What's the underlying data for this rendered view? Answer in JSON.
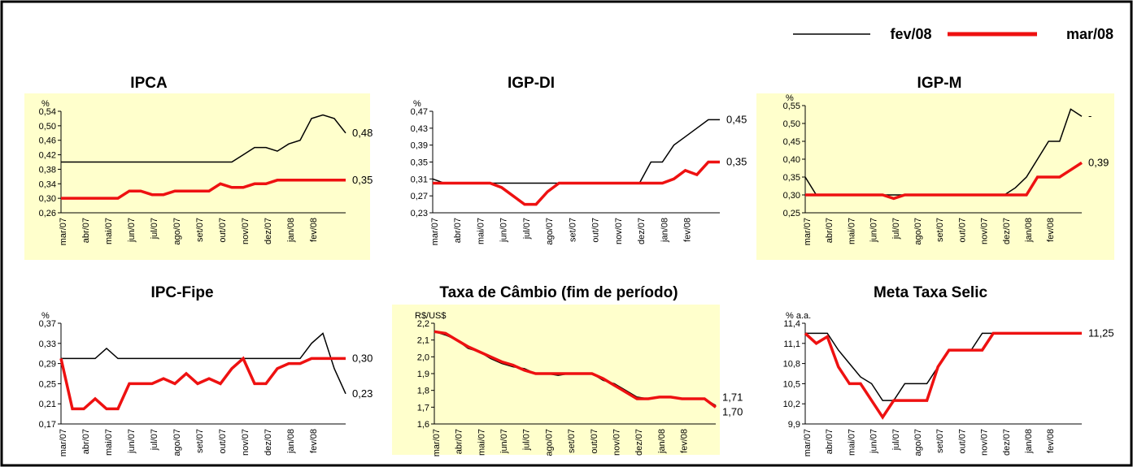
{
  "legend": [
    {
      "name": "fev/08",
      "color": "#000000"
    },
    {
      "name": "mar/08",
      "color": "#ee1111"
    }
  ],
  "chart_data": [
    {
      "type": "line",
      "title": "IPCA",
      "unit": "%",
      "background": "#ffffcc",
      "categories": [
        "mar/07",
        null,
        "abr/07",
        null,
        "mai/07",
        null,
        "jun/07",
        null,
        "jul/07",
        null,
        "ago/07",
        null,
        "set/07",
        null,
        "out/07",
        null,
        "nov/07",
        null,
        "dez/07",
        null,
        "jan/08",
        null,
        "fev/08",
        null,
        null,
        null
      ],
      "ylim": [
        0.26,
        0.54
      ],
      "yticks": [
        {
          "value": 0.26,
          "label": "0,26"
        },
        {
          "value": 0.3,
          "label": "0,30"
        },
        {
          "value": 0.34,
          "label": "0,34"
        },
        {
          "value": 0.38,
          "label": "0,38"
        },
        {
          "value": 0.42,
          "label": "0,42"
        },
        {
          "value": 0.46,
          "label": "0,46"
        },
        {
          "value": 0.5,
          "label": "0,50"
        },
        {
          "value": 0.54,
          "label": "0,54"
        }
      ],
      "series": [
        {
          "color": "#000000",
          "values": [
            0.4,
            0.4,
            0.4,
            0.4,
            0.4,
            0.4,
            0.4,
            0.4,
            0.4,
            0.4,
            0.4,
            0.4,
            0.4,
            0.4,
            0.4,
            0.4,
            0.42,
            0.44,
            0.44,
            0.43,
            0.45,
            0.46,
            0.52,
            0.53,
            0.52,
            0.48
          ],
          "value_labels": [
            null,
            null,
            null,
            null,
            null,
            null,
            null,
            null,
            null,
            null,
            null,
            null,
            null,
            null,
            null,
            null,
            null,
            null,
            null,
            null,
            null,
            null,
            null,
            null,
            null,
            "0,48"
          ]
        },
        {
          "color": "#ee1111",
          "values": [
            0.3,
            0.3,
            0.3,
            0.3,
            0.3,
            0.3,
            0.32,
            0.32,
            0.31,
            0.31,
            0.32,
            0.32,
            0.32,
            0.32,
            0.34,
            0.33,
            0.33,
            0.34,
            0.34,
            0.35,
            0.35,
            0.35,
            0.35,
            0.35,
            0.35,
            0.35
          ],
          "value_labels": [
            null,
            null,
            null,
            null,
            null,
            null,
            null,
            null,
            null,
            null,
            null,
            null,
            null,
            null,
            null,
            null,
            null,
            null,
            null,
            null,
            null,
            null,
            null,
            null,
            null,
            "0,35"
          ]
        }
      ]
    },
    {
      "type": "line",
      "title": "IGP-DI",
      "unit": "%",
      "background": null,
      "categories": [
        "mar/07",
        null,
        "abr/07",
        null,
        "mai/07",
        null,
        "jun/07",
        null,
        "jul/07",
        null,
        "ago/07",
        null,
        "set/07",
        null,
        "out/07",
        null,
        "nov/07",
        null,
        "dez/07",
        null,
        "jan/08",
        null,
        "fev/08",
        null,
        null,
        null
      ],
      "ylim": [
        0.23,
        0.47
      ],
      "yticks": [
        {
          "value": 0.23,
          "label": "0,23"
        },
        {
          "value": 0.27,
          "label": "0,27"
        },
        {
          "value": 0.31,
          "label": "0,31"
        },
        {
          "value": 0.35,
          "label": "0,35"
        },
        {
          "value": 0.39,
          "label": "0,39"
        },
        {
          "value": 0.43,
          "label": "0,43"
        },
        {
          "value": 0.47,
          "label": "0,47"
        }
      ],
      "series": [
        {
          "color": "#000000",
          "values": [
            0.31,
            0.3,
            0.3,
            0.3,
            0.3,
            0.3,
            0.3,
            0.3,
            0.3,
            0.3,
            0.3,
            0.3,
            0.3,
            0.3,
            0.3,
            0.3,
            0.3,
            0.3,
            0.3,
            0.35,
            0.35,
            0.39,
            0.41,
            0.43,
            0.45,
            0.45
          ],
          "value_labels": [
            null,
            null,
            null,
            null,
            null,
            null,
            null,
            null,
            null,
            null,
            null,
            null,
            null,
            null,
            null,
            null,
            null,
            null,
            null,
            null,
            null,
            null,
            null,
            null,
            null,
            "0,45"
          ]
        },
        {
          "color": "#ee1111",
          "values": [
            0.3,
            0.3,
            0.3,
            0.3,
            0.3,
            0.3,
            0.29,
            0.27,
            0.25,
            0.25,
            0.28,
            0.3,
            0.3,
            0.3,
            0.3,
            0.3,
            0.3,
            0.3,
            0.3,
            0.3,
            0.3,
            0.31,
            0.33,
            0.32,
            0.35,
            0.35
          ],
          "value_labels": [
            null,
            null,
            null,
            null,
            null,
            null,
            null,
            null,
            null,
            null,
            null,
            null,
            null,
            null,
            null,
            null,
            null,
            null,
            null,
            null,
            null,
            null,
            null,
            null,
            null,
            "0,35"
          ]
        }
      ]
    },
    {
      "type": "line",
      "title": "IGP-M",
      "unit": "%",
      "background": "#ffffcc",
      "categories": [
        "mar/07",
        null,
        "abr/07",
        null,
        "mai/07",
        null,
        "jun/07",
        null,
        "jul/07",
        null,
        "ago/07",
        null,
        "set/07",
        null,
        "out/07",
        null,
        "nov/07",
        null,
        "dez/07",
        null,
        "jan/08",
        null,
        "fev/08",
        null,
        null,
        null
      ],
      "ylim": [
        0.25,
        0.55
      ],
      "yticks": [
        {
          "value": 0.25,
          "label": "0,25"
        },
        {
          "value": 0.3,
          "label": "0,30"
        },
        {
          "value": 0.35,
          "label": "0,35"
        },
        {
          "value": 0.4,
          "label": "0,40"
        },
        {
          "value": 0.45,
          "label": "0,45"
        },
        {
          "value": 0.5,
          "label": "0,50"
        },
        {
          "value": 0.55,
          "label": "0,55"
        }
      ],
      "series": [
        {
          "color": "#000000",
          "values": [
            0.35,
            0.3,
            0.3,
            0.3,
            0.3,
            0.3,
            0.3,
            0.3,
            0.3,
            0.3,
            0.3,
            0.3,
            0.3,
            0.3,
            0.3,
            0.3,
            0.3,
            0.3,
            0.3,
            0.32,
            0.35,
            0.4,
            0.45,
            0.45,
            0.54,
            0.52
          ],
          "value_labels": [
            null,
            null,
            null,
            null,
            null,
            null,
            null,
            null,
            null,
            null,
            null,
            null,
            null,
            null,
            null,
            null,
            null,
            null,
            null,
            null,
            null,
            null,
            null,
            null,
            null,
            "-"
          ]
        },
        {
          "color": "#ee1111",
          "values": [
            0.3,
            0.3,
            0.3,
            0.3,
            0.3,
            0.3,
            0.3,
            0.3,
            0.29,
            0.3,
            0.3,
            0.3,
            0.3,
            0.3,
            0.3,
            0.3,
            0.3,
            0.3,
            0.3,
            0.3,
            0.3,
            0.35,
            0.35,
            0.35,
            0.37,
            0.39
          ],
          "value_labels": [
            null,
            null,
            null,
            null,
            null,
            null,
            null,
            null,
            null,
            null,
            null,
            null,
            null,
            null,
            null,
            null,
            null,
            null,
            null,
            null,
            null,
            null,
            null,
            null,
            null,
            "0,39"
          ]
        }
      ]
    },
    {
      "type": "line",
      "title": "IPC-Fipe",
      "unit": "%",
      "background": null,
      "categories": [
        "mar/07",
        null,
        "abr/07",
        null,
        "mai/07",
        null,
        "jun/07",
        null,
        "jul/07",
        null,
        "ago/07",
        null,
        "set/07",
        null,
        "out/07",
        null,
        "nov/07",
        null,
        "dez/07",
        null,
        "jan/08",
        null,
        "fev/08",
        null,
        null,
        null
      ],
      "ylim": [
        0.17,
        0.37
      ],
      "yticks": [
        {
          "value": 0.17,
          "label": "0,17"
        },
        {
          "value": 0.21,
          "label": "0,21"
        },
        {
          "value": 0.25,
          "label": "0,25"
        },
        {
          "value": 0.29,
          "label": "0,29"
        },
        {
          "value": 0.33,
          "label": "0,33"
        },
        {
          "value": 0.37,
          "label": "0,37"
        }
      ],
      "series": [
        {
          "color": "#000000",
          "values": [
            0.3,
            0.3,
            0.3,
            0.3,
            0.32,
            0.3,
            0.3,
            0.3,
            0.3,
            0.3,
            0.3,
            0.3,
            0.3,
            0.3,
            0.3,
            0.3,
            0.3,
            0.3,
            0.3,
            0.3,
            0.3,
            0.3,
            0.33,
            0.35,
            0.28,
            0.23
          ],
          "value_labels": [
            null,
            null,
            null,
            null,
            null,
            null,
            null,
            null,
            null,
            null,
            null,
            null,
            null,
            null,
            null,
            null,
            null,
            null,
            null,
            null,
            null,
            null,
            null,
            null,
            null,
            "0,23"
          ]
        },
        {
          "color": "#ee1111",
          "values": [
            0.3,
            0.2,
            0.2,
            0.22,
            0.2,
            0.2,
            0.25,
            0.25,
            0.25,
            0.26,
            0.25,
            0.27,
            0.25,
            0.26,
            0.25,
            0.28,
            0.3,
            0.25,
            0.25,
            0.28,
            0.29,
            0.29,
            0.3,
            0.3,
            0.3,
            0.3
          ],
          "value_labels": [
            null,
            null,
            null,
            null,
            null,
            null,
            null,
            null,
            null,
            null,
            null,
            null,
            null,
            null,
            null,
            null,
            null,
            null,
            null,
            null,
            null,
            null,
            null,
            null,
            null,
            "0,30"
          ]
        }
      ]
    },
    {
      "type": "line",
      "title": "Taxa de Câmbio (fim de período)",
      "unit": "R$/US$",
      "background": "#ffffcc",
      "categories": [
        "mar/07",
        null,
        "abr/07",
        null,
        "mai/07",
        null,
        "jun/07",
        null,
        "jul/07",
        null,
        "ago/07",
        null,
        "set/07",
        null,
        "out/07",
        null,
        "nov/07",
        null,
        "dez/07",
        null,
        "jan/08",
        null,
        "fev/08",
        null,
        null,
        null
      ],
      "ylim": [
        1.6,
        2.2
      ],
      "yticks": [
        {
          "value": 1.6,
          "label": "1,6"
        },
        {
          "value": 1.7,
          "label": "1,7"
        },
        {
          "value": 1.8,
          "label": "1,8"
        },
        {
          "value": 1.9,
          "label": "1,9"
        },
        {
          "value": 2.0,
          "label": "2,0"
        },
        {
          "value": 2.1,
          "label": "2,1"
        },
        {
          "value": 2.2,
          "label": "2,2"
        }
      ],
      "series": [
        {
          "color": "#000000",
          "values": [
            2.15,
            2.13,
            2.1,
            2.05,
            2.03,
            1.99,
            1.96,
            1.94,
            1.93,
            1.9,
            1.9,
            1.89,
            1.9,
            1.9,
            1.9,
            1.86,
            1.84,
            1.8,
            1.76,
            1.75,
            1.76,
            1.76,
            1.75,
            1.75,
            1.75,
            1.71
          ],
          "value_labels": [
            null,
            null,
            null,
            null,
            null,
            null,
            null,
            null,
            null,
            null,
            null,
            null,
            null,
            null,
            null,
            null,
            null,
            null,
            null,
            null,
            null,
            null,
            null,
            null,
            null,
            "1,71"
          ]
        },
        {
          "color": "#ee1111",
          "values": [
            2.15,
            2.14,
            2.1,
            2.06,
            2.03,
            2.0,
            1.97,
            1.95,
            1.92,
            1.9,
            1.9,
            1.9,
            1.9,
            1.9,
            1.9,
            1.87,
            1.83,
            1.79,
            1.75,
            1.75,
            1.76,
            1.76,
            1.75,
            1.75,
            1.75,
            1.7
          ],
          "value_labels": [
            null,
            null,
            null,
            null,
            null,
            null,
            null,
            null,
            null,
            null,
            null,
            null,
            null,
            null,
            null,
            null,
            null,
            null,
            null,
            null,
            null,
            null,
            null,
            null,
            null,
            "1,70"
          ]
        }
      ]
    },
    {
      "type": "line",
      "title": "Meta Taxa Selic",
      "unit": "% a.a.",
      "background": null,
      "categories": [
        "mar/07",
        null,
        "abr/07",
        null,
        "mai/07",
        null,
        "jun/07",
        null,
        "jul/07",
        null,
        "ago/07",
        null,
        "set/07",
        null,
        "out/07",
        null,
        "nov/07",
        null,
        "dez/07",
        null,
        "jan/08",
        null,
        "fev/08",
        null,
        null,
        null
      ],
      "ylim": [
        9.9,
        11.4
      ],
      "yticks": [
        {
          "value": 9.9,
          "label": "9,9"
        },
        {
          "value": 10.2,
          "label": "10,2"
        },
        {
          "value": 10.5,
          "label": "10,5"
        },
        {
          "value": 10.8,
          "label": "10,8"
        },
        {
          "value": 11.1,
          "label": "11,1"
        },
        {
          "value": 11.4,
          "label": "11,4"
        }
      ],
      "series": [
        {
          "color": "#000000",
          "values": [
            11.25,
            11.25,
            11.25,
            11.0,
            10.8,
            10.6,
            10.5,
            10.25,
            10.25,
            10.5,
            10.5,
            10.5,
            10.75,
            11.0,
            11.0,
            11.0,
            11.25,
            11.25,
            11.25,
            11.25,
            11.25,
            11.25,
            11.25,
            11.25,
            11.25,
            11.25
          ],
          "value_labels": [
            null,
            null,
            null,
            null,
            null,
            null,
            null,
            null,
            null,
            null,
            null,
            null,
            null,
            null,
            null,
            null,
            null,
            null,
            null,
            null,
            "-",
            null,
            null,
            null,
            null,
            null
          ]
        },
        {
          "color": "#ee1111",
          "values": [
            11.25,
            11.1,
            11.2,
            10.75,
            10.5,
            10.5,
            10.25,
            10.0,
            10.25,
            10.25,
            10.25,
            10.25,
            10.75,
            11.0,
            11.0,
            11.0,
            11.0,
            11.25,
            11.25,
            11.25,
            11.25,
            11.25,
            11.25,
            11.25,
            11.25,
            11.25
          ],
          "value_labels": [
            null,
            null,
            null,
            null,
            null,
            null,
            null,
            null,
            null,
            null,
            null,
            null,
            null,
            null,
            null,
            null,
            null,
            null,
            null,
            null,
            null,
            null,
            null,
            null,
            null,
            "11,25"
          ]
        }
      ]
    }
  ]
}
